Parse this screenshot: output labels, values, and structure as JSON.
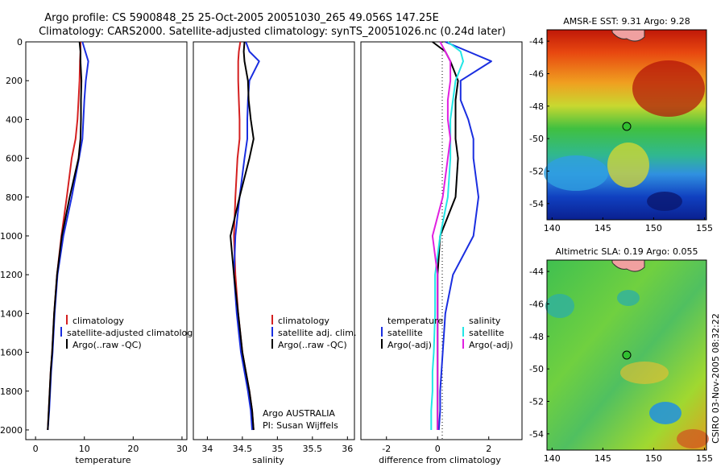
{
  "figure": {
    "title_line1": "Argo profile: CS 5900848_25 25-Oct-2005 20051030_265 49.056S 147.25E",
    "title_line2": "Climatology: CARS2000. Satellite-adjusted climatology: synTS_20051026.nc (0.24d later)",
    "stamp": "CSIRO 03-Nov-2005 08:32:22",
    "argo_note_line1": "Argo AUSTRALIA",
    "argo_note_line2": "PI: Susan Wijffels"
  },
  "colors": {
    "climatology": "#d42020",
    "satellite": "#1a2ee0",
    "argo": "#000000",
    "sat_salinity": "#22e6e6",
    "argo_salinity": "#e020e0"
  },
  "chart_data": [
    {
      "type": "line",
      "name": "temperature-panel",
      "xlabel": "temperature",
      "ylabel": "",
      "xlim": [
        -2,
        31
      ],
      "ylim": [
        2050,
        0
      ],
      "xticks": [
        0,
        10,
        20,
        30
      ],
      "yticks": [
        0,
        200,
        400,
        600,
        800,
        1000,
        1200,
        1400,
        1600,
        1800,
        2000
      ],
      "legend": [
        "climatology",
        "satellite-adjusted climatolog",
        "Argo(..raw -QC)"
      ],
      "series": [
        {
          "name": "climatology",
          "color": "#d42020",
          "x": [
            9.2,
            9.2,
            9.1,
            9.0,
            8.8,
            8.6,
            8.2,
            7.4,
            6.4,
            5.3,
            4.4,
            3.8,
            3.4,
            3.1,
            2.9,
            2.7,
            2.5
          ],
          "y": [
            0,
            50,
            100,
            200,
            300,
            400,
            500,
            600,
            800,
            1000,
            1200,
            1400,
            1600,
            1700,
            1800,
            1900,
            2000
          ]
        },
        {
          "name": "satellite-adjusted climatolog",
          "color": "#1a2ee0",
          "x": [
            9.6,
            10.2,
            10.8,
            10.3,
            10.0,
            9.8,
            9.6,
            8.9,
            7.4,
            5.7,
            4.5,
            3.9,
            3.5,
            3.2,
            3.0,
            2.8,
            2.5
          ],
          "y": [
            0,
            50,
            100,
            200,
            300,
            400,
            500,
            600,
            800,
            1000,
            1200,
            1400,
            1600,
            1700,
            1800,
            1900,
            2000
          ]
        },
        {
          "name": "Argo(..raw -QC)",
          "color": "#000000",
          "x": [
            9.0,
            9.2,
            9.2,
            9.4,
            9.3,
            9.3,
            9.2,
            8.8,
            7.0,
            5.4,
            4.4,
            3.8,
            3.4,
            3.1,
            2.9,
            2.7,
            2.5
          ],
          "y": [
            0,
            50,
            100,
            200,
            300,
            400,
            500,
            600,
            800,
            1000,
            1200,
            1400,
            1600,
            1700,
            1800,
            1900,
            2000
          ]
        }
      ]
    },
    {
      "type": "line",
      "name": "salinity-panel",
      "xlabel": "salinity",
      "ylabel": "",
      "xlim": [
        33.8,
        36.1
      ],
      "ylim": [
        2050,
        0
      ],
      "xticks": [
        34,
        34.5,
        35,
        35.5,
        36
      ],
      "legend": [
        "climatology",
        "satellite adj. clim.",
        "Argo(..raw -QC)"
      ],
      "series": [
        {
          "name": "climatology",
          "color": "#d42020",
          "x": [
            34.47,
            34.45,
            34.44,
            34.44,
            34.45,
            34.46,
            34.46,
            34.43,
            34.4,
            34.38,
            34.4,
            34.44,
            34.5,
            34.55,
            34.6,
            34.64,
            34.66
          ],
          "y": [
            0,
            50,
            100,
            200,
            300,
            400,
            500,
            600,
            800,
            1000,
            1200,
            1400,
            1600,
            1700,
            1800,
            1900,
            2000
          ]
        },
        {
          "name": "satellite adj. clim.",
          "color": "#1a2ee0",
          "x": [
            34.55,
            34.6,
            34.74,
            34.6,
            34.58,
            34.57,
            34.57,
            34.53,
            34.46,
            34.4,
            34.38,
            34.42,
            34.48,
            34.53,
            34.58,
            34.62,
            34.64
          ],
          "y": [
            0,
            50,
            100,
            200,
            300,
            400,
            500,
            600,
            800,
            1000,
            1200,
            1400,
            1600,
            1700,
            1800,
            1900,
            2000
          ]
        },
        {
          "name": "Argo(..raw -QC)",
          "color": "#000000",
          "x": [
            34.53,
            34.52,
            34.53,
            34.58,
            34.59,
            34.62,
            34.66,
            34.6,
            34.46,
            34.33,
            34.38,
            34.44,
            34.5,
            34.55,
            34.6,
            34.64,
            34.66
          ],
          "y": [
            0,
            50,
            100,
            200,
            300,
            400,
            500,
            600,
            800,
            1000,
            1200,
            1400,
            1600,
            1700,
            1800,
            1900,
            2000
          ]
        }
      ]
    },
    {
      "type": "line",
      "name": "difference-panel",
      "xlabel": "difference from climatology",
      "ylabel": "",
      "xlim": [
        -3,
        3.3
      ],
      "ylim": [
        2050,
        0
      ],
      "xticks": [
        -2,
        0,
        2
      ],
      "legend": [
        "temperature",
        "satellite",
        "Argo(-adj)",
        "salinity",
        "satellite",
        "Argo(-adj)"
      ],
      "series": [
        {
          "name": "temperature satellite",
          "color": "#1a2ee0",
          "x": [
            0.3,
            1.2,
            2.1,
            0.9,
            0.9,
            1.2,
            1.4,
            1.4,
            1.6,
            1.4,
            0.6,
            0.3,
            0.2,
            0.15,
            0.1,
            0.1,
            0.05
          ],
          "y": [
            0,
            50,
            100,
            200,
            300,
            400,
            500,
            600,
            800,
            1000,
            1200,
            1400,
            1600,
            1700,
            1800,
            1900,
            2000
          ]
        },
        {
          "name": "temperature Argo(-adj)",
          "color": "#000000",
          "x": [
            -0.2,
            0.3,
            0.5,
            0.8,
            0.7,
            0.7,
            0.7,
            0.8,
            0.7,
            0.1,
            0.0,
            0.0,
            0.0,
            0.0,
            0.0,
            0.0,
            0.0
          ],
          "y": [
            0,
            50,
            100,
            200,
            300,
            400,
            500,
            600,
            800,
            1000,
            1200,
            1400,
            1600,
            1700,
            1800,
            1900,
            2000
          ]
        },
        {
          "name": "salinity satellite",
          "color": "#22e6e6",
          "x": [
            0.4,
            0.9,
            1.0,
            0.7,
            0.6,
            0.5,
            0.5,
            0.5,
            0.4,
            0.1,
            -0.1,
            -0.1,
            -0.15,
            -0.2,
            -0.2,
            -0.25,
            -0.25
          ],
          "y": [
            0,
            50,
            100,
            200,
            300,
            400,
            500,
            600,
            800,
            1000,
            1200,
            1400,
            1600,
            1700,
            1800,
            1900,
            2000
          ]
        },
        {
          "name": "salinity Argo(-adj)",
          "color": "#e020e0",
          "x": [
            0.1,
            0.3,
            0.5,
            0.5,
            0.4,
            0.4,
            0.5,
            0.4,
            0.2,
            -0.2,
            0.0,
            0.0,
            0.0,
            0.0,
            0.0,
            0.0,
            0.0
          ],
          "y": [
            0,
            50,
            100,
            200,
            300,
            400,
            500,
            600,
            800,
            1000,
            1200,
            1400,
            1600,
            1700,
            1800,
            1900,
            2000
          ]
        }
      ]
    },
    {
      "type": "heatmap",
      "name": "sst-map",
      "title": "AMSR-E SST: 9.31 Argo: 9.28",
      "xlim": [
        139.5,
        155.2
      ],
      "ylim": [
        -55,
        -43.3
      ],
      "xticks": [
        140,
        145,
        150,
        155
      ],
      "yticks": [
        -44,
        -46,
        -48,
        -50,
        -52,
        -54
      ],
      "marker": {
        "lon": 147.25,
        "lat": -49.056
      }
    },
    {
      "type": "heatmap",
      "name": "sla-map",
      "title": "Altimetric SLA: 0.19 Argo: 0.055",
      "xlim": [
        139.5,
        155.2
      ],
      "ylim": [
        -55,
        -43.3
      ],
      "xticks": [
        140,
        145,
        150,
        155
      ],
      "yticks": [
        -44,
        -46,
        -48,
        -50,
        -52,
        -54
      ],
      "marker": {
        "lon": 147.25,
        "lat": -49.056
      }
    }
  ]
}
